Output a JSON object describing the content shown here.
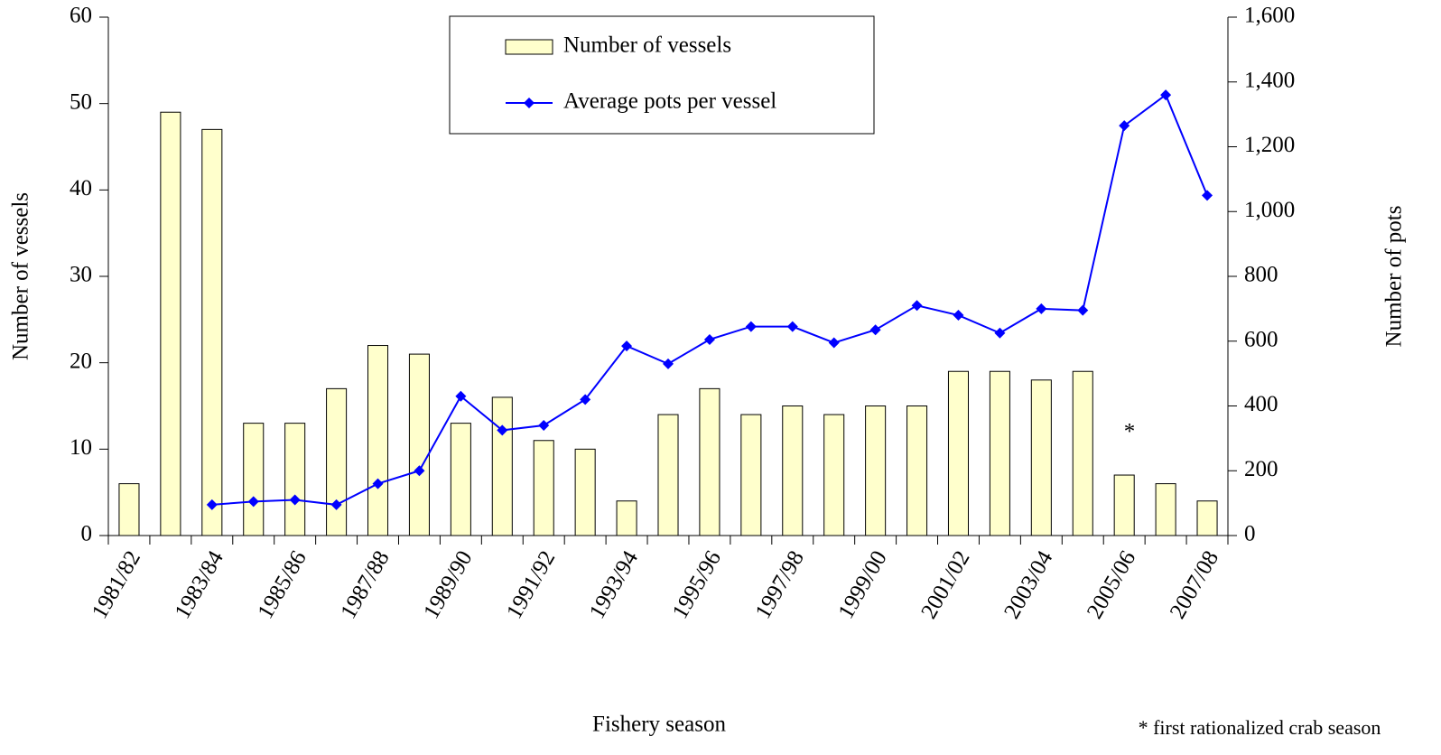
{
  "chart_data": {
    "type": "bar",
    "categories": [
      "1981/82",
      null,
      "1983/84",
      null,
      "1985/86",
      null,
      "1987/88",
      null,
      "1989/90",
      null,
      "1991/92",
      null,
      "1993/94",
      null,
      "1995/96",
      null,
      "1997/98",
      null,
      "1999/00",
      null,
      "2001/02",
      null,
      "2003/04",
      null,
      "2005/06",
      null,
      "2007/08"
    ],
    "series": [
      {
        "name": "Number of vessels",
        "type": "bar",
        "color": "#ffffcc",
        "axis": "y",
        "values": [
          6,
          49,
          47,
          13,
          13,
          17,
          22,
          21,
          13,
          16,
          11,
          10,
          4,
          14,
          17,
          14,
          15,
          14,
          15,
          15,
          19,
          19,
          18,
          19,
          7,
          6,
          4
        ]
      },
      {
        "name": "Average pots per vessel",
        "type": "line",
        "color": "#0000ff",
        "axis": "y2",
        "values": [
          null,
          null,
          95,
          105,
          110,
          95,
          160,
          200,
          430,
          325,
          340,
          420,
          585,
          530,
          605,
          645,
          645,
          595,
          635,
          710,
          680,
          625,
          700,
          695,
          1265,
          1360,
          1050
        ]
      }
    ],
    "xlabel": "Fishery season",
    "ylabel": "Number of vessels",
    "y2label": "Number of pots",
    "ylim": [
      0,
      60
    ],
    "yticks": [
      0,
      10,
      20,
      30,
      40,
      50,
      60
    ],
    "y2lim": [
      0,
      1600
    ],
    "y2ticks": [
      0,
      200,
      400,
      600,
      800,
      {
        "value": 1000,
        "label": "1,000"
      },
      {
        "value": 1200,
        "label": "1,200"
      },
      {
        "value": 1400,
        "label": "1,400"
      },
      {
        "value": 1600,
        "label": "1,600"
      }
    ],
    "annotations": [
      "*",
      "* first rationalized crab season"
    ],
    "legend": "top",
    "grid": false
  }
}
